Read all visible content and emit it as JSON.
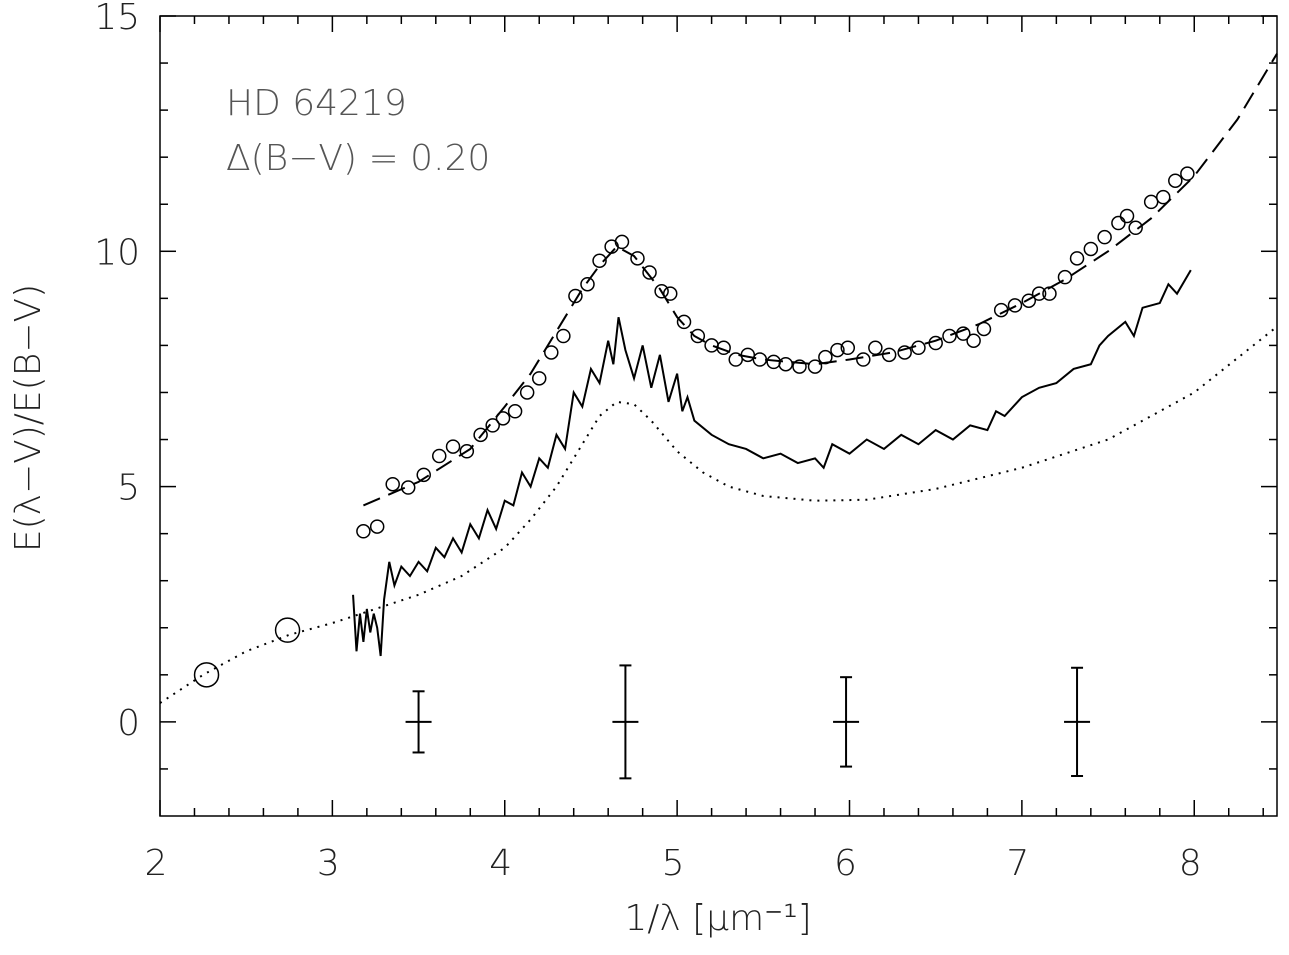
{
  "chart_data": {
    "type": "line",
    "xlabel": "1/λ [μm⁻¹]",
    "ylabel": "E(λ−V)/E(B−V)",
    "annotations": [
      "HD 64219",
      "Δ(B−V) = 0.20"
    ],
    "xlim": [
      2,
      8.48
    ],
    "ylim": [
      -2,
      15
    ],
    "xticks": [
      2,
      3,
      4,
      5,
      6,
      7,
      8
    ],
    "yticks": [
      0,
      5,
      10,
      15
    ],
    "xminorticks": [
      2.2,
      2.4,
      2.6,
      2.8,
      3.2,
      3.4,
      3.6,
      3.8,
      4.2,
      4.4,
      4.6,
      4.8,
      5.2,
      5.4,
      5.6,
      5.8,
      6.2,
      6.4,
      6.6,
      6.8,
      7.2,
      7.4,
      7.6,
      7.8,
      8.2,
      8.4
    ],
    "yminorticks": [
      -1,
      1,
      2,
      3,
      4,
      6,
      7,
      8,
      9,
      11,
      12,
      13,
      14
    ],
    "series": [
      {
        "kind": "line",
        "dash": "dotted",
        "color": "#000000",
        "x": [
          2,
          2.25,
          2.5,
          2.75,
          3,
          3.25,
          3.5,
          3.75,
          4,
          4.15,
          4.3,
          4.45,
          4.55,
          4.65,
          4.75,
          4.85,
          5,
          5.15,
          5.3,
          5.5,
          5.8,
          6.1,
          6.5,
          7,
          7.5,
          8,
          8.48
        ],
        "values": [
          0.4,
          1.0,
          1.5,
          1.85,
          2.1,
          2.4,
          2.7,
          3.1,
          3.7,
          4.3,
          5.0,
          5.9,
          6.5,
          6.8,
          6.75,
          6.4,
          5.75,
          5.3,
          5.0,
          4.8,
          4.7,
          4.72,
          4.95,
          5.4,
          6.0,
          7.0,
          8.4
        ]
      },
      {
        "kind": "line",
        "dash": "dashed",
        "color": "#000000",
        "x": [
          3.18,
          3.5,
          3.8,
          4,
          4.15,
          4.3,
          4.45,
          4.55,
          4.65,
          4.75,
          4.9,
          5,
          5.1,
          5.2,
          5.35,
          5.5,
          5.8,
          6,
          6.25,
          6.5,
          6.75,
          7,
          7.25,
          7.5,
          7.75,
          8,
          8.25,
          8.48
        ],
        "values": [
          4.6,
          5.1,
          5.8,
          6.7,
          7.4,
          8.3,
          9.2,
          9.7,
          10.1,
          9.9,
          9.2,
          8.6,
          8.2,
          8.0,
          7.8,
          7.7,
          7.6,
          7.7,
          7.85,
          8.1,
          8.45,
          8.9,
          9.4,
          10.0,
          10.7,
          11.6,
          12.8,
          14.2
        ]
      },
      {
        "kind": "line",
        "dash": "solid",
        "color": "#000000",
        "x": [
          3.12,
          3.14,
          3.16,
          3.18,
          3.2,
          3.22,
          3.24,
          3.26,
          3.28,
          3.3,
          3.33,
          3.36,
          3.4,
          3.45,
          3.5,
          3.55,
          3.6,
          3.65,
          3.7,
          3.75,
          3.8,
          3.85,
          3.9,
          3.95,
          4.0,
          4.05,
          4.1,
          4.15,
          4.2,
          4.25,
          4.3,
          4.35,
          4.4,
          4.45,
          4.5,
          4.55,
          4.6,
          4.63,
          4.66,
          4.7,
          4.75,
          4.8,
          4.85,
          4.9,
          4.95,
          5.0,
          5.03,
          5.06,
          5.1,
          5.2,
          5.3,
          5.4,
          5.5,
          5.6,
          5.7,
          5.8,
          5.85,
          5.9,
          6.0,
          6.1,
          6.2,
          6.3,
          6.4,
          6.5,
          6.6,
          6.7,
          6.8,
          6.85,
          6.9,
          7.0,
          7.1,
          7.2,
          7.3,
          7.4,
          7.45,
          7.5,
          7.6,
          7.65,
          7.7,
          7.8,
          7.85,
          7.9,
          7.98
        ],
        "values": [
          2.7,
          1.5,
          2.3,
          1.7,
          2.4,
          1.9,
          2.3,
          2.0,
          1.4,
          2.6,
          3.4,
          2.9,
          3.3,
          3.1,
          3.4,
          3.2,
          3.7,
          3.5,
          3.9,
          3.6,
          4.2,
          3.9,
          4.5,
          4.1,
          4.7,
          4.6,
          5.3,
          5.0,
          5.6,
          5.4,
          6.1,
          5.8,
          7.0,
          6.7,
          7.5,
          7.2,
          8.1,
          7.6,
          8.6,
          7.9,
          7.3,
          8.0,
          7.1,
          7.8,
          6.8,
          7.4,
          6.6,
          6.9,
          6.4,
          6.1,
          5.9,
          5.8,
          5.6,
          5.7,
          5.5,
          5.6,
          5.4,
          5.9,
          5.7,
          6.0,
          5.8,
          6.1,
          5.9,
          6.2,
          6.0,
          6.3,
          6.2,
          6.6,
          6.5,
          6.9,
          7.1,
          7.2,
          7.5,
          7.6,
          8.0,
          8.2,
          8.5,
          8.2,
          8.8,
          8.9,
          9.3,
          9.1,
          9.6
        ]
      },
      {
        "kind": "scatter",
        "marker": "circle-small",
        "color": "#000000",
        "x": [
          3.18,
          3.26,
          3.35,
          3.44,
          3.53,
          3.62,
          3.7,
          3.78,
          3.86,
          3.93,
          3.99,
          4.06,
          4.13,
          4.2,
          4.27,
          4.34,
          4.41,
          4.48,
          4.55,
          4.62,
          4.68,
          4.77,
          4.84,
          4.91,
          4.96,
          5.04,
          5.12,
          5.2,
          5.27,
          5.34,
          5.41,
          5.48,
          5.56,
          5.63,
          5.71,
          5.8,
          5.86,
          5.93,
          5.99,
          6.08,
          6.15,
          6.23,
          6.32,
          6.4,
          6.5,
          6.58,
          6.66,
          6.72,
          6.78,
          6.88,
          6.96,
          7.04,
          7.1,
          7.16,
          7.25,
          7.32,
          7.4,
          7.48,
          7.56,
          7.61,
          7.66,
          7.75,
          7.82,
          7.89,
          7.96
        ],
        "values": [
          4.05,
          4.15,
          5.05,
          4.98,
          5.25,
          5.65,
          5.85,
          5.75,
          6.1,
          6.3,
          6.45,
          6.6,
          7.0,
          7.3,
          7.85,
          8.2,
          9.05,
          9.3,
          9.8,
          10.1,
          10.2,
          9.85,
          9.55,
          9.15,
          9.1,
          8.5,
          8.2,
          8.0,
          7.95,
          7.7,
          7.8,
          7.7,
          7.65,
          7.6,
          7.55,
          7.55,
          7.75,
          7.9,
          7.95,
          7.7,
          7.95,
          7.8,
          7.85,
          7.95,
          8.05,
          8.2,
          8.25,
          8.1,
          8.35,
          8.75,
          8.85,
          8.95,
          9.1,
          9.1,
          9.45,
          9.85,
          10.05,
          10.3,
          10.6,
          10.75,
          10.5,
          11.05,
          11.15,
          11.5,
          11.65
        ]
      },
      {
        "kind": "scatter",
        "marker": "circle-large",
        "color": "#000000",
        "x": [
          2.27,
          2.74
        ],
        "values": [
          1.0,
          1.95
        ]
      },
      {
        "kind": "errorbar",
        "color": "#000000",
        "x": [
          3.5,
          4.7,
          5.98,
          7.32
        ],
        "values": [
          0,
          0,
          0,
          0
        ],
        "errors": [
          0.65,
          1.2,
          0.95,
          1.15
        ]
      }
    ]
  }
}
